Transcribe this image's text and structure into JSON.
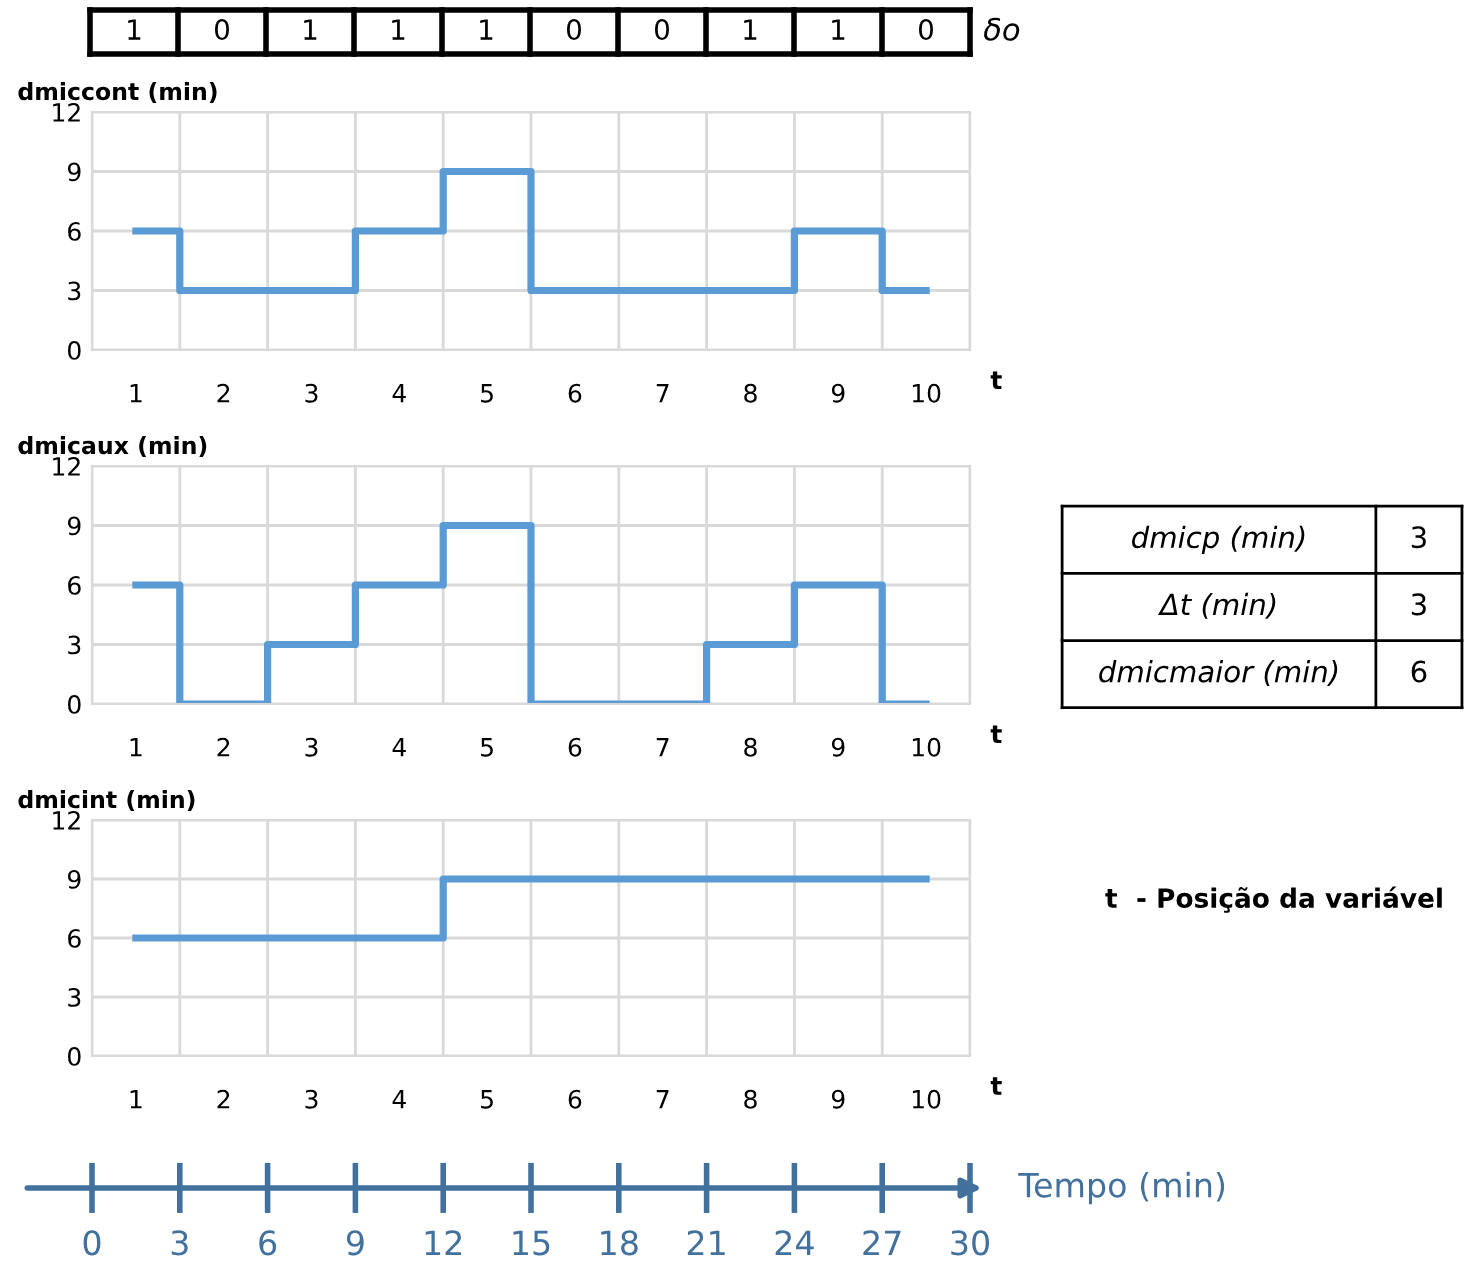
{
  "chart_data": [
    {
      "type": "other",
      "annotations": [
        "1",
        "0",
        "1",
        "1",
        "1",
        "0",
        "0",
        "1",
        "1",
        "0",
        "δo"
      ]
    },
    {
      "type": "step",
      "ylabel": "dmiccont (min)",
      "xlabel": "t",
      "categories": [
        "1",
        "2",
        "3",
        "4",
        "5",
        "6",
        "7",
        "8",
        "9",
        "10"
      ],
      "series": [
        {
          "color": "#5b9bd5",
          "values": [
            6,
            3,
            3,
            6,
            9,
            3,
            3,
            3,
            6,
            3
          ]
        }
      ],
      "ylim": [
        0,
        12
      ],
      "yticks": [
        0,
        3,
        6,
        9,
        12
      ],
      "grid": true
    },
    {
      "type": "step",
      "ylabel": "dmicaux (min)",
      "xlabel": "t",
      "categories": [
        "1",
        "2",
        "3",
        "4",
        "5",
        "6",
        "7",
        "8",
        "9",
        "10"
      ],
      "series": [
        {
          "color": "#5b9bd5",
          "values": [
            6,
            0,
            3,
            6,
            9,
            0,
            0,
            3,
            6,
            0
          ]
        }
      ],
      "ylim": [
        0,
        12
      ],
      "yticks": [
        0,
        3,
        6,
        9,
        12
      ],
      "grid": true
    },
    {
      "type": "other",
      "annotations": [
        "dmicp (min)",
        "3",
        "Δt (min)",
        "3",
        "dmicmaior (min)",
        "6",
        "t  - Posição da variável"
      ]
    },
    {
      "type": "step",
      "ylabel": "dmicint (min)",
      "xlabel": "t",
      "categories": [
        "1",
        "2",
        "3",
        "4",
        "5",
        "6",
        "7",
        "8",
        "9",
        "10"
      ],
      "series": [
        {
          "color": "#5b9bd5",
          "values": [
            6,
            6,
            6,
            6,
            9,
            9,
            9,
            9,
            9,
            9
          ]
        }
      ],
      "ylim": [
        0,
        12
      ],
      "yticks": [
        0,
        3,
        6,
        9,
        12
      ],
      "grid": true,
      "x2label": "Tempo (min)",
      "x2lim": [
        0,
        30
      ],
      "x2ticks": [
        0,
        3,
        6,
        9,
        12,
        15,
        18,
        21,
        24,
        27,
        30
      ]
    }
  ]
}
